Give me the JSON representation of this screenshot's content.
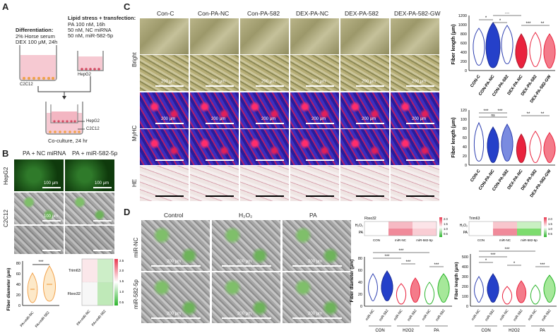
{
  "panels": {
    "a": "A",
    "b": "B",
    "c": "C",
    "d": "D"
  },
  "panelA": {
    "diff_title": "Differentiation:",
    "diff_lines": [
      "2% Horse serum",
      "DEX 100 μM, 24h"
    ],
    "lipid_title": "Lipid stress + transfection:",
    "lipid_lines": [
      "PA 100 nM, 16h",
      "50 nM, NC miRNA",
      "50 nM, miR-582-5p"
    ],
    "cell1": "C2C12",
    "cell2": "HepG2",
    "co_hepg2": "HepG2",
    "co_c2c12": "C2C12",
    "caption": "Co-culture, 24 hr"
  },
  "panelB": {
    "col1": "PA + NC miRNA",
    "col2": "PA + miR-582-5p",
    "row1": "HepG2",
    "row2": "C2C12",
    "scale": "100 μm",
    "violin_ylabel": "Fiber diameter (μm)",
    "violin_yticks": [
      "0",
      "20",
      "40",
      "60",
      "80"
    ],
    "violin_xlabels": [
      "PA+miR-NC",
      "PA+miR-582"
    ],
    "sig": "***",
    "heat_rows": [
      "Trim63",
      "Fbxo32"
    ],
    "heat_cols": [
      "PA+miR-NC",
      "PA+miR-582"
    ],
    "heat_ticks": [
      "2.5",
      "2.0",
      "1.5",
      "1.0",
      "0.5"
    ]
  },
  "panelC": {
    "cols": [
      "Con-C",
      "Con-PA-NC",
      "Con-PA-582",
      "DEX-PA-NC",
      "DEX-PA-582",
      "DEX-PA-582-GW"
    ],
    "rows": [
      "Bright",
      "MyHC",
      "HE"
    ],
    "scale": "200 μm",
    "plot1_ylabel": "Fiber length (μm)",
    "plot1_yticks": [
      "0",
      "200",
      "400",
      "600",
      "800",
      "1000",
      "1200"
    ],
    "plot2_ylabel": "Fiber length (μm)",
    "plot2_yticks": [
      "0",
      "20",
      "40",
      "60",
      "80",
      "100",
      "120"
    ],
    "xlabels": [
      "CON-C",
      "CON-PA-NC",
      "CON-PA-582",
      "DEX-PA-NC",
      "DEX-PA-582",
      "DEX-PA-582-GW"
    ],
    "sig1": [
      "*",
      "*",
      "***",
      "***",
      "**"
    ],
    "sig2": [
      "***",
      "ns",
      "***",
      "**",
      "**"
    ]
  },
  "panelD": {
    "cols": [
      "Control",
      "H₂O₂",
      "PA"
    ],
    "rows": [
      "miR-NC",
      "miR-582-5p"
    ],
    "scale": "200 μm",
    "heat1_title": "Fbxo32",
    "heat2_title": "Trim63",
    "heat_rows": [
      "H₂O₂",
      "PA"
    ],
    "heat_cols": [
      "CON",
      "miR-NC",
      "miR-582-5p"
    ],
    "heat_ticks": [
      "2.0",
      "1.5",
      "1.0",
      "0.5"
    ],
    "plot1_ylabel": "Fiber diameter (μm)",
    "plot1_yticks": [
      "0",
      "20",
      "40",
      "60",
      "80"
    ],
    "plot2_ylabel": "Fiber length (μm)",
    "plot2_yticks": [
      "0",
      "100",
      "200",
      "300",
      "400",
      "500"
    ],
    "xlabels": [
      "miR-NC",
      "miR-582",
      "miR-NC",
      "miR-582",
      "miR-NC",
      "miR-582"
    ],
    "groups": [
      "CON",
      "H2O2",
      "PA"
    ],
    "sig": [
      "***",
      "***",
      "***",
      "***",
      "***"
    ]
  }
}
